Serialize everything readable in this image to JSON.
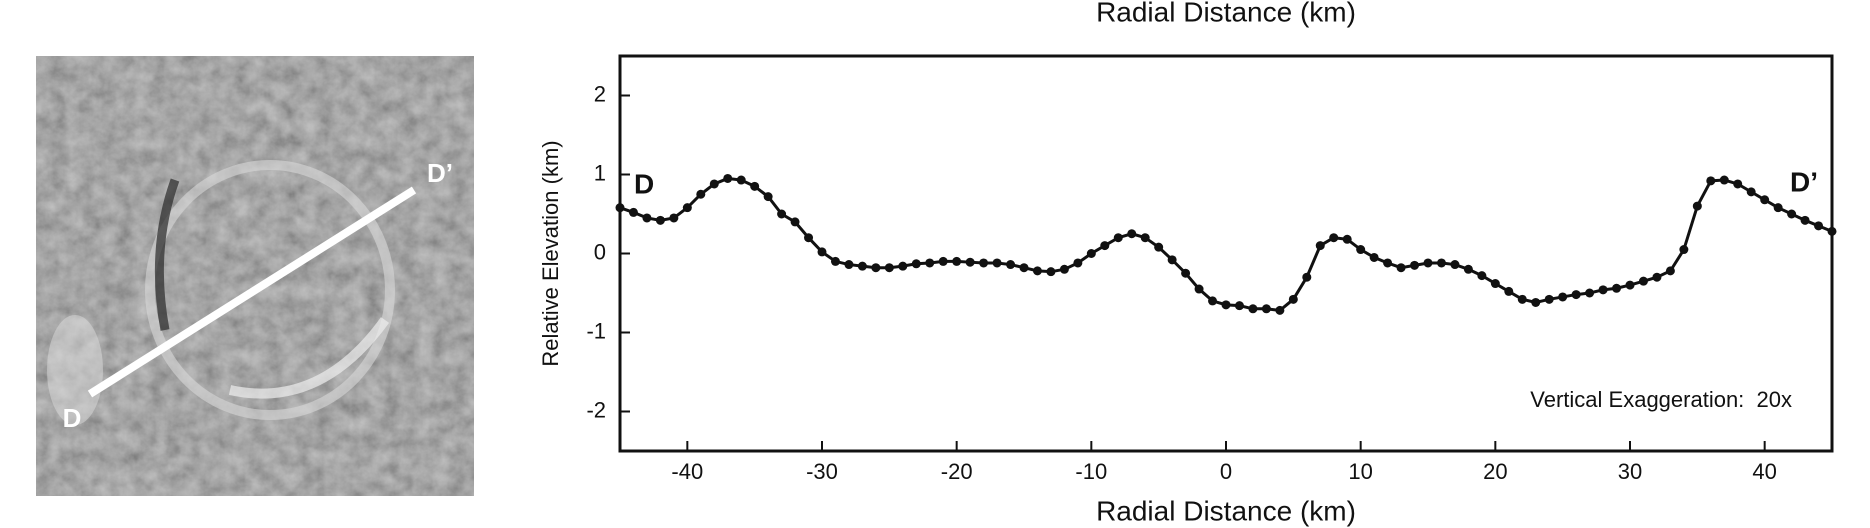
{
  "image": {
    "start_label": "D",
    "end_label": "D’"
  },
  "chart_data": {
    "type": "line",
    "top_label": "Radial Distance (km)",
    "xlabel": "Radial Distance (km)",
    "ylabel": "Relative Elevation (km)",
    "annotations": [
      "D",
      "D’",
      "Vertical Exaggeration:  20x"
    ],
    "x": [
      -45,
      -44,
      -43,
      -42,
      -41,
      -40,
      -39,
      -38,
      -37,
      -36,
      -35,
      -34,
      -33,
      -32,
      -31,
      -30,
      -29,
      -28,
      -27,
      -26,
      -25,
      -24,
      -23,
      -22,
      -21,
      -20,
      -19,
      -18,
      -17,
      -16,
      -15,
      -14,
      -13,
      -12,
      -11,
      -10,
      -9,
      -8,
      -7,
      -6,
      -5,
      -4,
      -3,
      -2,
      -1,
      0,
      1,
      2,
      3,
      4,
      5,
      6,
      7,
      8,
      9,
      10,
      11,
      12,
      13,
      14,
      15,
      16,
      17,
      18,
      19,
      20,
      21,
      22,
      23,
      24,
      25,
      26,
      27,
      28,
      29,
      30,
      31,
      32,
      33,
      34,
      35,
      36,
      37,
      38,
      39,
      40,
      41,
      42,
      43,
      44,
      45
    ],
    "series": [
      {
        "color": "#111111",
        "values": [
          0.58,
          0.52,
          0.45,
          0.42,
          0.45,
          0.58,
          0.75,
          0.88,
          0.95,
          0.93,
          0.85,
          0.72,
          0.5,
          0.4,
          0.2,
          0.02,
          -0.1,
          -0.14,
          -0.16,
          -0.18,
          -0.18,
          -0.16,
          -0.13,
          -0.12,
          -0.1,
          -0.1,
          -0.11,
          -0.12,
          -0.12,
          -0.14,
          -0.18,
          -0.22,
          -0.23,
          -0.2,
          -0.12,
          0.0,
          0.1,
          0.2,
          0.25,
          0.2,
          0.08,
          -0.08,
          -0.25,
          -0.45,
          -0.6,
          -0.65,
          -0.66,
          -0.7,
          -0.7,
          -0.72,
          -0.58,
          -0.3,
          0.1,
          0.2,
          0.18,
          0.05,
          -0.05,
          -0.12,
          -0.18,
          -0.15,
          -0.12,
          -0.12,
          -0.14,
          -0.2,
          -0.28,
          -0.38,
          -0.48,
          -0.58,
          -0.62,
          -0.58,
          -0.55,
          -0.52,
          -0.5,
          -0.46,
          -0.44,
          -0.4,
          -0.35,
          -0.3,
          -0.22,
          0.05,
          0.6,
          0.92,
          0.93,
          0.88,
          0.78,
          0.68,
          0.58,
          0.5,
          0.42,
          0.35,
          0.28
        ]
      }
    ],
    "xlim": [
      -45,
      45
    ],
    "ylim": [
      -2.5,
      2.5
    ],
    "xticks": [
      -40,
      -30,
      -20,
      -10,
      0,
      10,
      20,
      30,
      40
    ],
    "yticks": [
      -2,
      -1,
      0,
      1,
      2
    ]
  }
}
